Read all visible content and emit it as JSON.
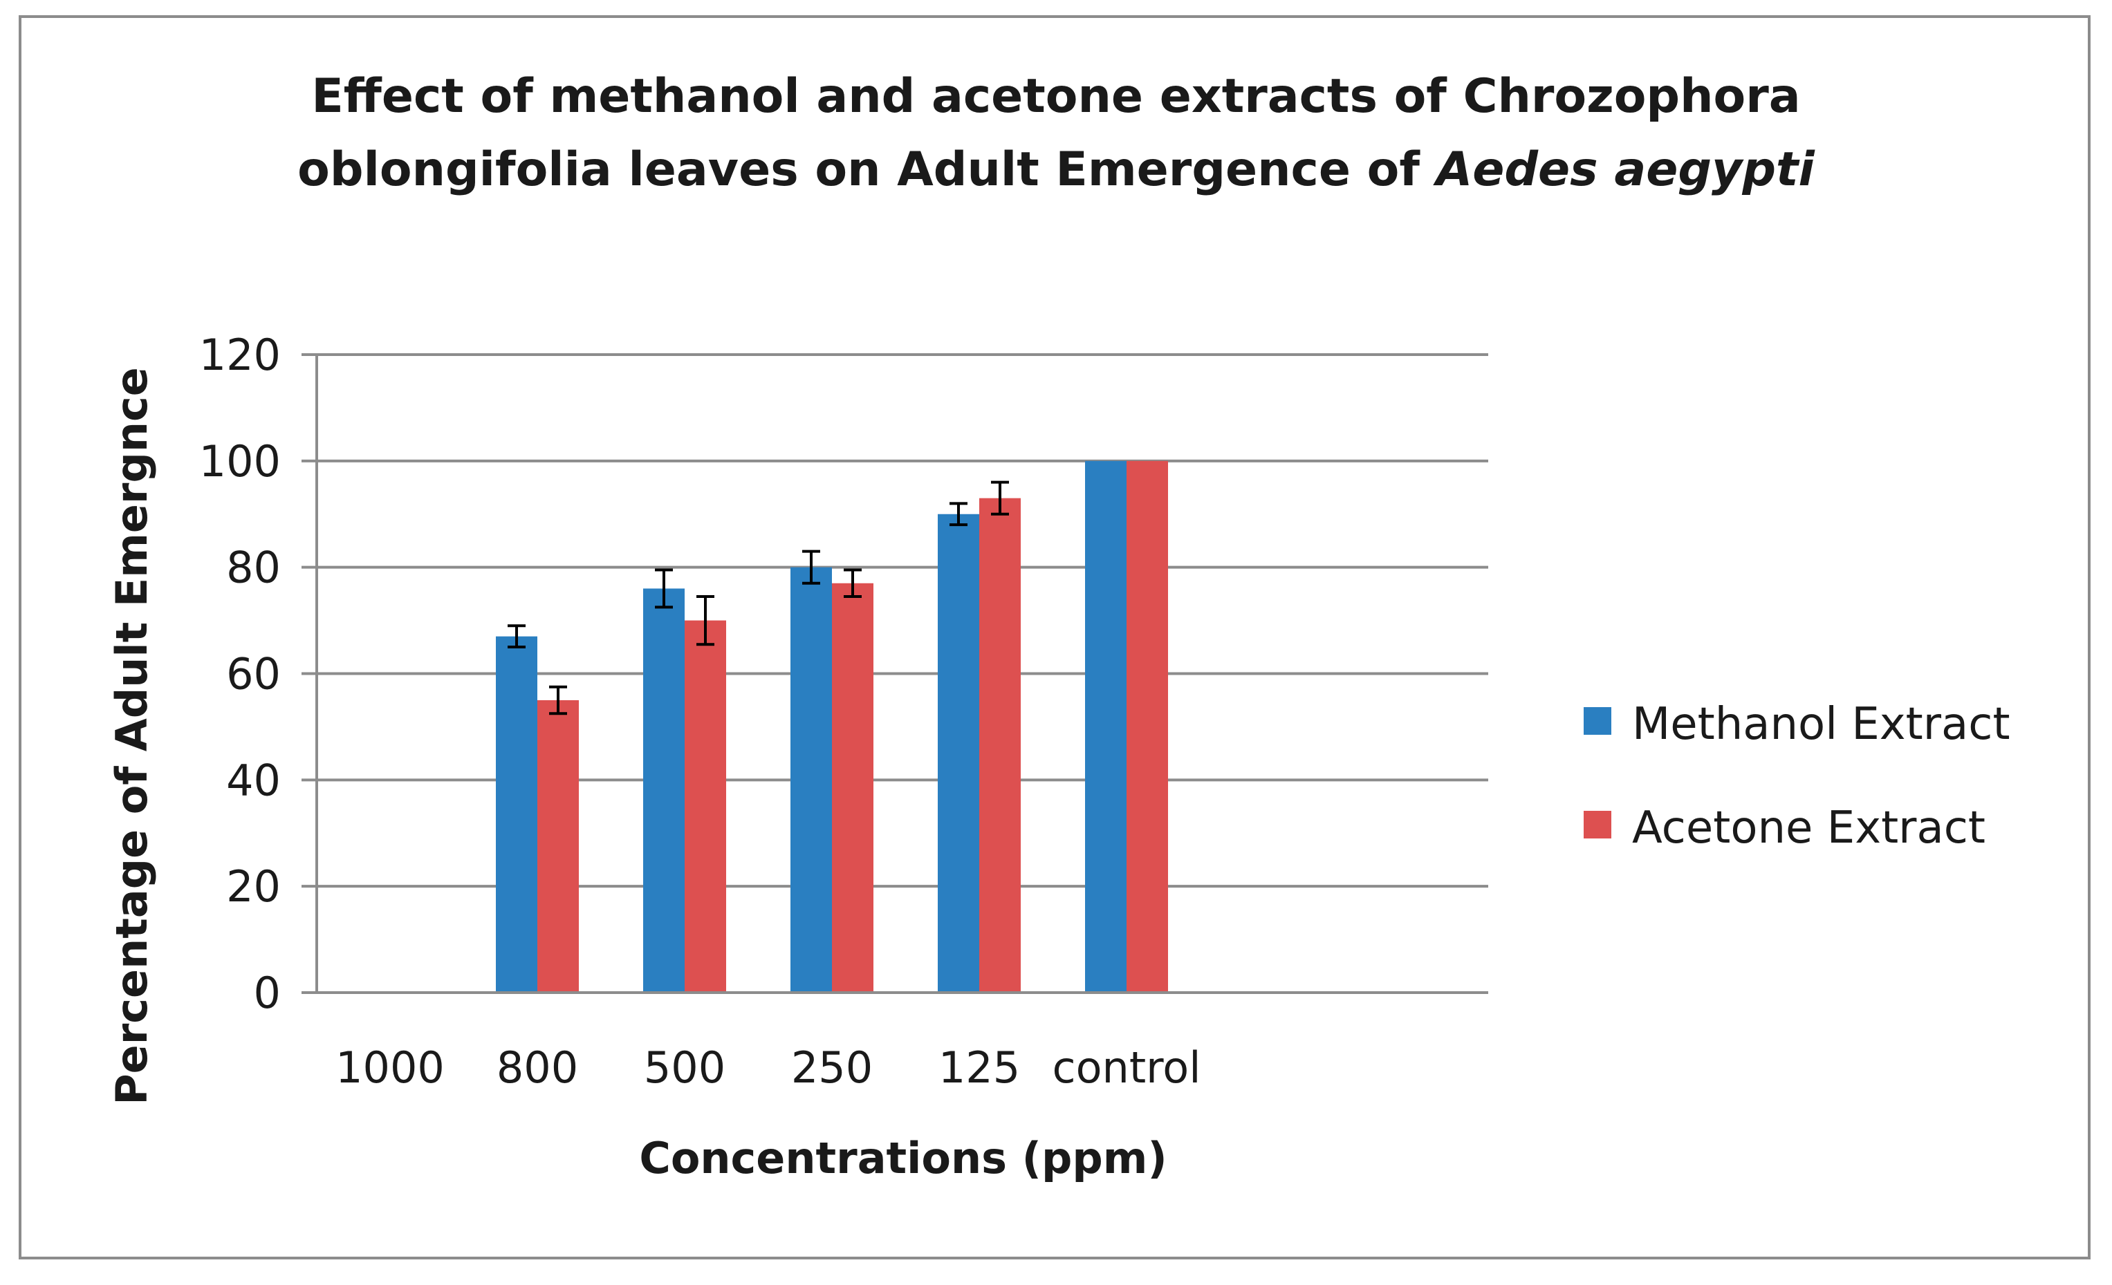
{
  "chart_data": {
    "type": "bar",
    "title_line1": "Effect of methanol and acetone extracts of Chrozophora",
    "title_line2_main": "oblongifolia leaves on  Adult Emergence of ",
    "title_line2_italic": "Aedes aegypti",
    "xlabel": "Concentrations (ppm)",
    "ylabel": "Percentage of Adult Emergnce",
    "categories": [
      "1000",
      "800",
      "500",
      "250",
      "125",
      "control"
    ],
    "ylim": [
      0,
      120
    ],
    "yticks": [
      "0",
      "20",
      "40",
      "60",
      "80",
      "100",
      "120"
    ],
    "grid": true,
    "legend_position": "right",
    "series": [
      {
        "name": "Methanol Extract",
        "color": "#2a7fc1",
        "values": [
          0,
          67,
          76,
          80,
          90,
          100
        ],
        "errors": [
          0,
          2,
          3.5,
          3,
          2,
          0
        ]
      },
      {
        "name": "Acetone Extract",
        "color": "#dd5050",
        "values": [
          0,
          55,
          70,
          77,
          93,
          100
        ],
        "errors": [
          0,
          2.5,
          4.5,
          2.5,
          3,
          0
        ]
      }
    ]
  }
}
